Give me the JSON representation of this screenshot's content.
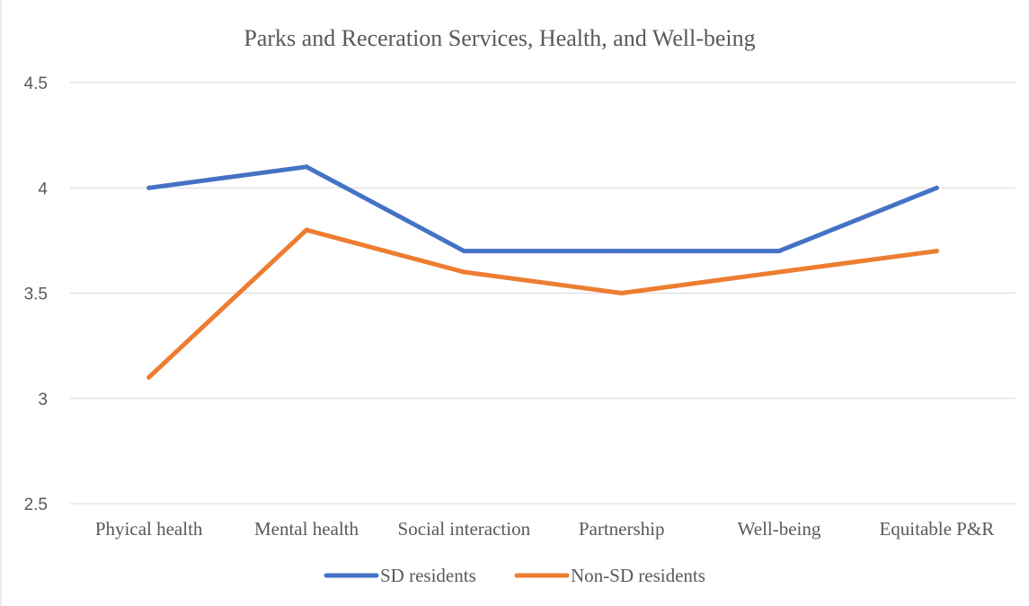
{
  "chart_data": {
    "type": "line",
    "title": "Parks and Receration Services, Health, and Well-being",
    "xlabel": "",
    "ylabel": "",
    "categories": [
      "Phyical health",
      "Mental health",
      "Social interaction",
      "Partnership",
      "Well-being",
      "Equitable P&R"
    ],
    "y_ticks": [
      "2.5",
      "3",
      "3.5",
      "4",
      "4.5"
    ],
    "ylim": [
      2.5,
      4.5
    ],
    "grid": true,
    "legend_position": "bottom",
    "series": [
      {
        "name": "SD residents",
        "color": "#4472C4",
        "values": [
          4.0,
          4.1,
          3.7,
          3.7,
          3.7,
          4.0
        ]
      },
      {
        "name": "Non-SD residents",
        "color": "#ED7D31",
        "values": [
          3.1,
          3.8,
          3.6,
          3.5,
          3.6,
          3.7
        ]
      }
    ]
  }
}
